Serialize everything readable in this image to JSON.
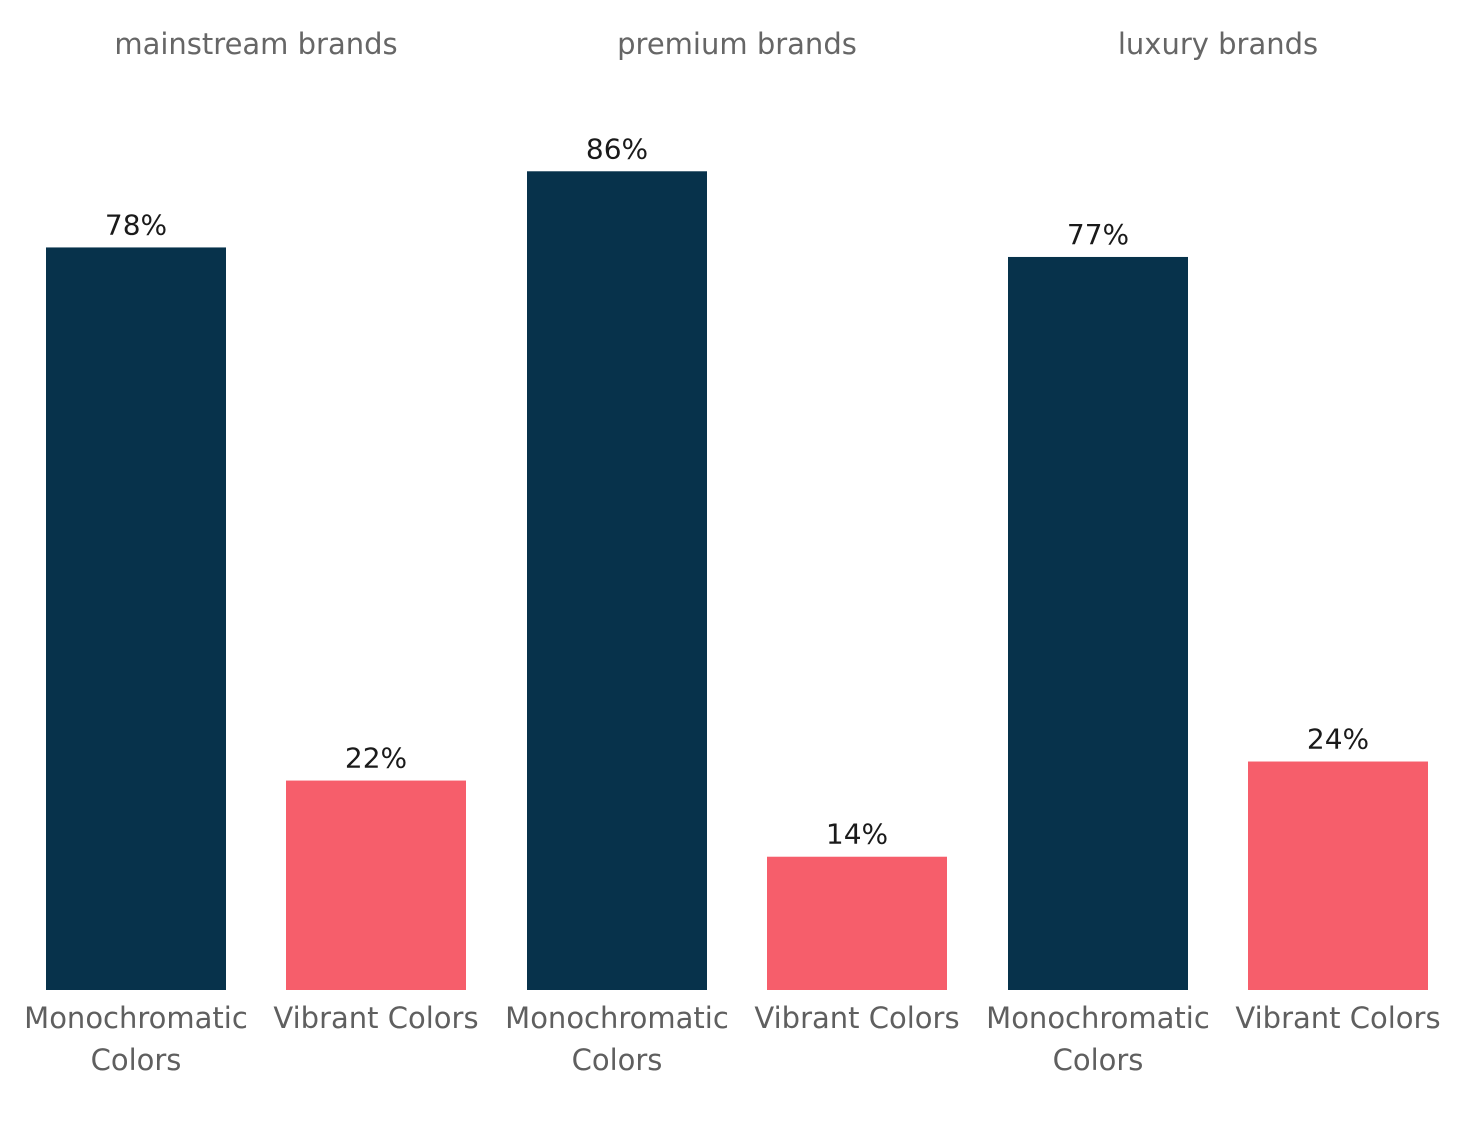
{
  "colors": {
    "Monochromatic Colors": "#07324b",
    "Vibrant Colors": "#f65e6b",
    "background": "#ffffff"
  },
  "chart_data": {
    "type": "bar",
    "panels": [
      {
        "title": "mainstream brands",
        "categories": [
          "Monochromatic Colors",
          "Vibrant Colors"
        ],
        "values": [
          78,
          22
        ],
        "value_labels": [
          "78%",
          "22%"
        ]
      },
      {
        "title": "premium brands",
        "categories": [
          "Monochromatic Colors",
          "Vibrant Colors"
        ],
        "values": [
          86,
          14
        ],
        "value_labels": [
          "86%",
          "14%"
        ]
      },
      {
        "title": "luxury brands",
        "categories": [
          "Monochromatic Colors",
          "Vibrant Colors"
        ],
        "values": [
          77,
          24
        ],
        "value_labels": [
          "77%",
          "24%"
        ]
      }
    ],
    "ylim": [
      0,
      100
    ],
    "grid": false,
    "legend": "none"
  }
}
